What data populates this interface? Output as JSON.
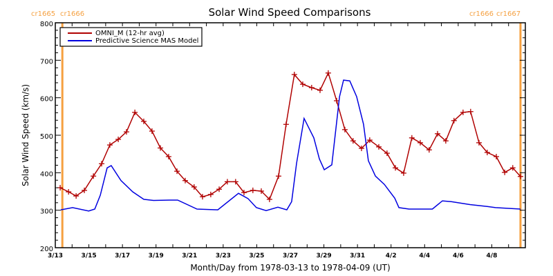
{
  "chart_data": {
    "type": "line",
    "title": "Solar Wind Speed Comparisons",
    "xlabel": "Month/Day from 1978-03-13 to 1978-04-09 (UT)",
    "ylabel": "Solar Wind Speed (km/s)",
    "ylim": [
      200,
      800
    ],
    "xlim_days": [
      0,
      28
    ],
    "x_start_date": "3/13",
    "yticks": [
      200,
      300,
      400,
      500,
      600,
      700,
      800
    ],
    "ytick_labels": [
      "200",
      "300",
      "400",
      "500",
      "600",
      "700",
      "800"
    ],
    "xticks_days": [
      0,
      2,
      4,
      6,
      8,
      10,
      12,
      14,
      16,
      18,
      20,
      22,
      24,
      26
    ],
    "xtick_labels": [
      "3/13",
      "3/15",
      "3/17",
      "3/19",
      "3/21",
      "3/23",
      "3/25",
      "3/27",
      "3/29",
      "3/31",
      "4/2",
      "4/4",
      "4/6",
      "4/8"
    ],
    "grid": false,
    "legend_position": "top-left",
    "carrington_markers": [
      {
        "day": 0.42,
        "left_label": "cr1665",
        "right_label": "cr1666"
      },
      {
        "day": 27.71,
        "left_label": "cr1666",
        "right_label": "cr1667"
      }
    ],
    "series": [
      {
        "name": "OMNI_M (12-hr avg)",
        "color": "#b00000",
        "marker": "plus",
        "x_days": [
          0.29,
          0.79,
          1.24,
          1.73,
          2.27,
          2.76,
          3.25,
          3.75,
          4.24,
          4.74,
          5.27,
          5.76,
          6.26,
          6.75,
          7.25,
          7.74,
          8.27,
          8.77,
          9.26,
          9.76,
          10.25,
          10.74,
          11.24,
          11.77,
          12.27,
          12.76,
          13.3,
          13.75,
          14.24,
          14.74,
          15.27,
          15.77,
          16.26,
          16.76,
          17.25,
          17.74,
          18.24,
          18.73,
          19.27,
          19.76,
          20.26,
          20.75,
          21.24,
          21.74,
          22.27,
          22.77,
          23.26,
          23.75,
          24.29,
          24.74,
          25.24,
          25.73,
          26.27,
          26.77,
          27.25,
          27.71
        ],
        "values": [
          360,
          349,
          338,
          353,
          391,
          424,
          474,
          489,
          509,
          561,
          537,
          511,
          466,
          443,
          404,
          379,
          362,
          336,
          342,
          356,
          376,
          376,
          347,
          353,
          351,
          329,
          391,
          529,
          662,
          636,
          627,
          620,
          666,
          592,
          515,
          485,
          465,
          487,
          469,
          452,
          413,
          399,
          493,
          480,
          461,
          504,
          485,
          539,
          561,
          563,
          480,
          454,
          443,
          401,
          413,
          390
        ]
      },
      {
        "name": "Predictive Science MAS Model",
        "color": "#0000e0",
        "marker": "none",
        "x_days": [
          0.33,
          1.03,
          1.98,
          2.35,
          2.68,
          3.09,
          3.33,
          3.91,
          4.61,
          5.27,
          5.85,
          6.79,
          7.29,
          8.44,
          9.68,
          10.91,
          11.48,
          11.98,
          12.56,
          13.26,
          13.79,
          14.08,
          14.37,
          14.82,
          15.4,
          15.73,
          16.02,
          16.47,
          16.93,
          17.17,
          17.54,
          17.95,
          18.36,
          18.65,
          19.07,
          19.6,
          20.22,
          20.47,
          21.07,
          21.77,
          22.46,
          23.06,
          23.59,
          24.7,
          25.73,
          26.22,
          27.71
        ],
        "values": [
          301,
          307,
          298,
          303,
          340,
          413,
          419,
          379,
          349,
          329,
          326,
          327,
          327,
          303,
          301,
          345,
          331,
          307,
          299,
          308,
          301,
          323,
          425,
          545,
          493,
          437,
          408,
          421,
          603,
          647,
          645,
          603,
          529,
          432,
          391,
          369,
          332,
          307,
          303,
          303,
          303,
          325,
          323,
          315,
          310,
          307,
          303
        ]
      }
    ]
  }
}
